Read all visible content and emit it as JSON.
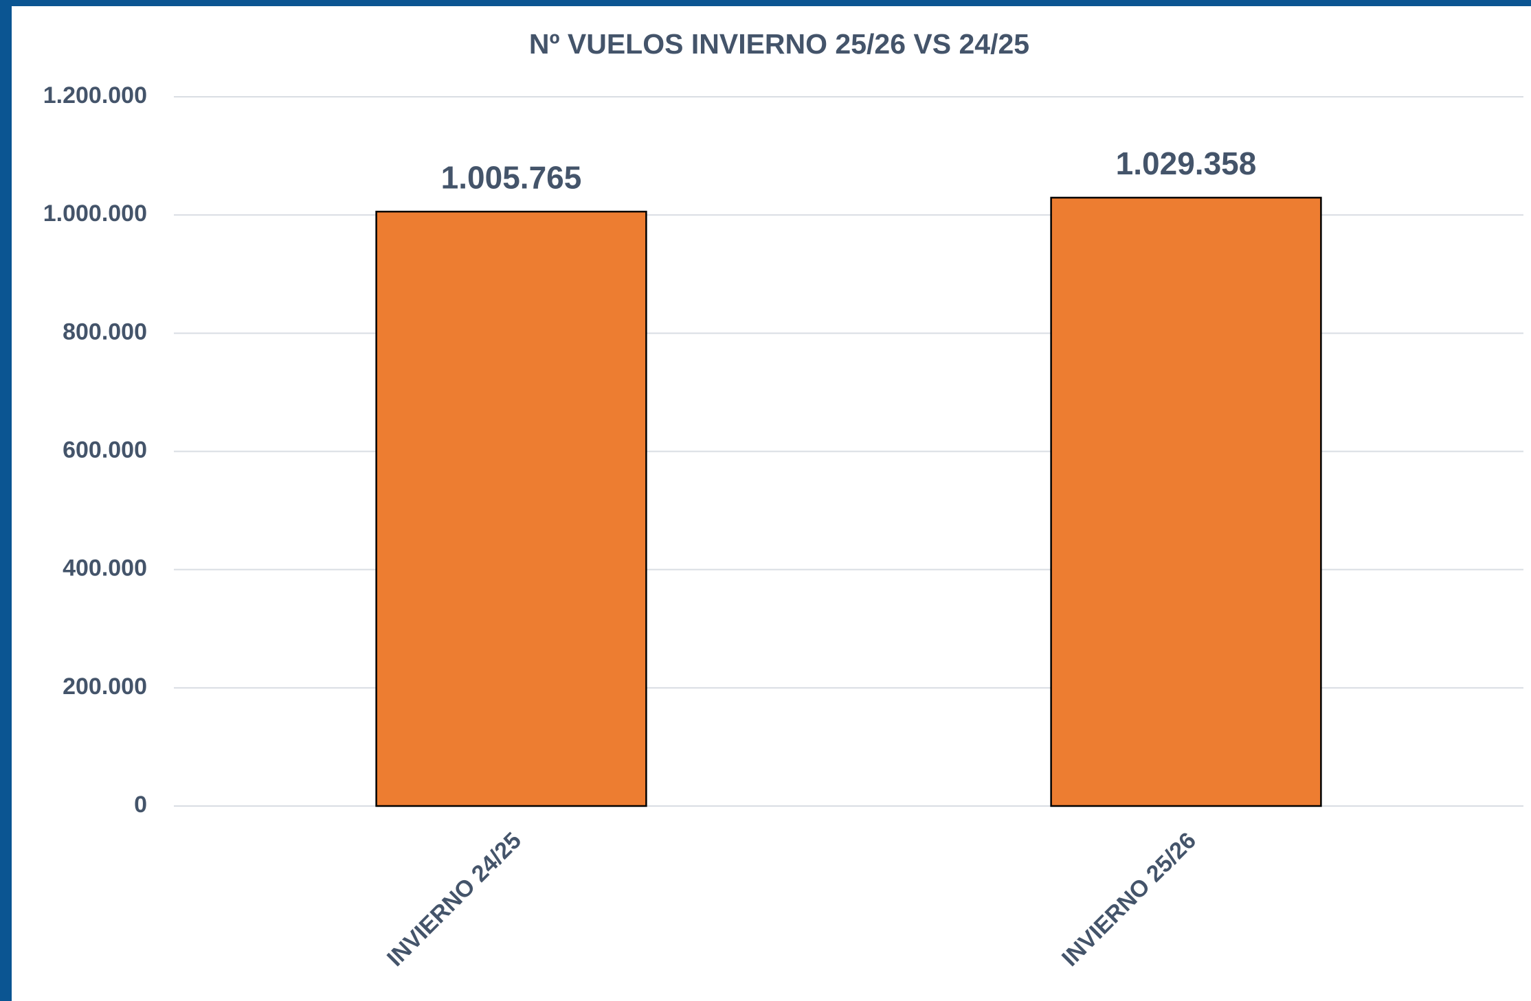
{
  "chart_data": {
    "type": "bar",
    "title": "Nº VUELOS INVIERNO 25/26 VS 24/25",
    "categories": [
      "INVIERNO 24/25",
      "INVIERNO 25/26"
    ],
    "values": [
      1005765,
      1029358
    ],
    "value_labels": [
      "1.005.765",
      "1.029.358"
    ],
    "color": "#ed7d31",
    "ylim": [
      0,
      1200000
    ],
    "yticks": [
      0,
      {
        "value": 200000,
        "label": "200.000"
      },
      {
        "value": 400000,
        "label": "400.000"
      },
      {
        "value": 600000,
        "label": "600.000"
      },
      {
        "value": 800000,
        "label": "800.000"
      },
      {
        "value": 1000000,
        "label": "1.000.000"
      },
      {
        "value": 1200000,
        "label": "1.200.000"
      }
    ],
    "grid": true
  }
}
